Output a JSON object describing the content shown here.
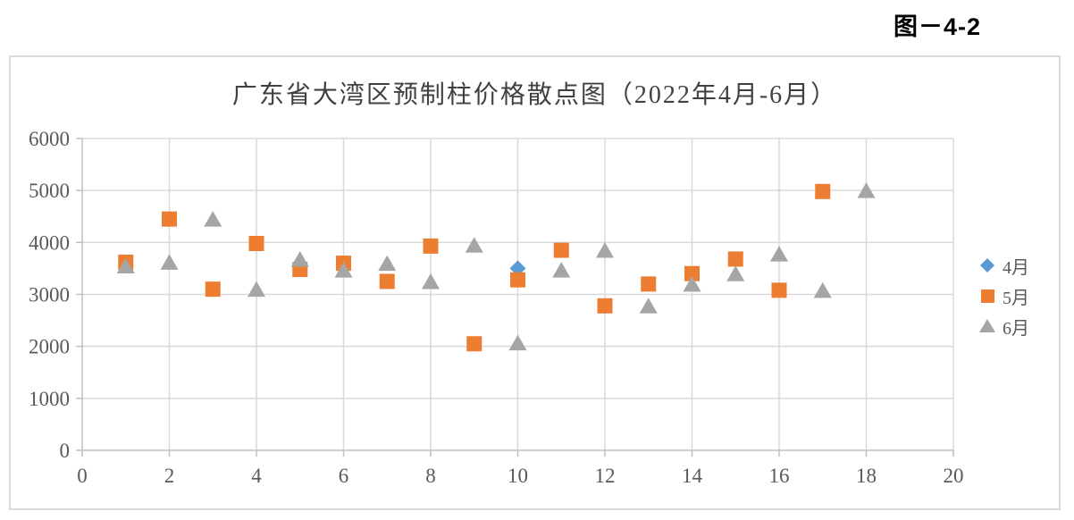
{
  "figure_label": "图－4-2",
  "chart_data": {
    "type": "scatter",
    "title": "广东省大湾区预制柱价格散点图（2022年4月-6月）",
    "xlabel": "",
    "ylabel": "",
    "xlim": [
      0,
      20
    ],
    "ylim": [
      0,
      6000
    ],
    "x_ticks": [
      0,
      2,
      4,
      6,
      8,
      10,
      12,
      14,
      16,
      18,
      20
    ],
    "y_ticks": [
      0,
      1000,
      2000,
      3000,
      4000,
      5000,
      6000
    ],
    "grid": true,
    "legend_position": "right",
    "colors": {
      "gridline": "#d9d9d9",
      "axis": "#bfbfbf",
      "tick_label": "#595959",
      "title": "#404040",
      "frame_border": "#d9d9d9"
    },
    "series": [
      {
        "name": "4月",
        "marker": "diamond",
        "color": "#5B9BD5",
        "points": [
          [
            10,
            3500
          ]
        ]
      },
      {
        "name": "5月",
        "marker": "square",
        "color": "#ED7D31",
        "points": [
          [
            1,
            3620
          ],
          [
            2,
            4450
          ],
          [
            3,
            3100
          ],
          [
            4,
            3980
          ],
          [
            5,
            3480
          ],
          [
            6,
            3600
          ],
          [
            7,
            3250
          ],
          [
            8,
            3930
          ],
          [
            9,
            2050
          ],
          [
            10,
            3280
          ],
          [
            11,
            3850
          ],
          [
            12,
            2780
          ],
          [
            13,
            3200
          ],
          [
            14,
            3400
          ],
          [
            15,
            3680
          ],
          [
            16,
            3080
          ],
          [
            17,
            4980
          ]
        ]
      },
      {
        "name": "6月",
        "marker": "triangle",
        "color": "#A5A5A5",
        "points": [
          [
            1,
            3550
          ],
          [
            2,
            3620
          ],
          [
            3,
            4450
          ],
          [
            4,
            3100
          ],
          [
            5,
            3680
          ],
          [
            6,
            3470
          ],
          [
            7,
            3600
          ],
          [
            8,
            3250
          ],
          [
            9,
            3950
          ],
          [
            10,
            2070
          ],
          [
            11,
            3470
          ],
          [
            12,
            3850
          ],
          [
            13,
            2780
          ],
          [
            14,
            3200
          ],
          [
            15,
            3400
          ],
          [
            16,
            3780
          ],
          [
            17,
            3080
          ],
          [
            18,
            5000
          ]
        ]
      }
    ]
  }
}
